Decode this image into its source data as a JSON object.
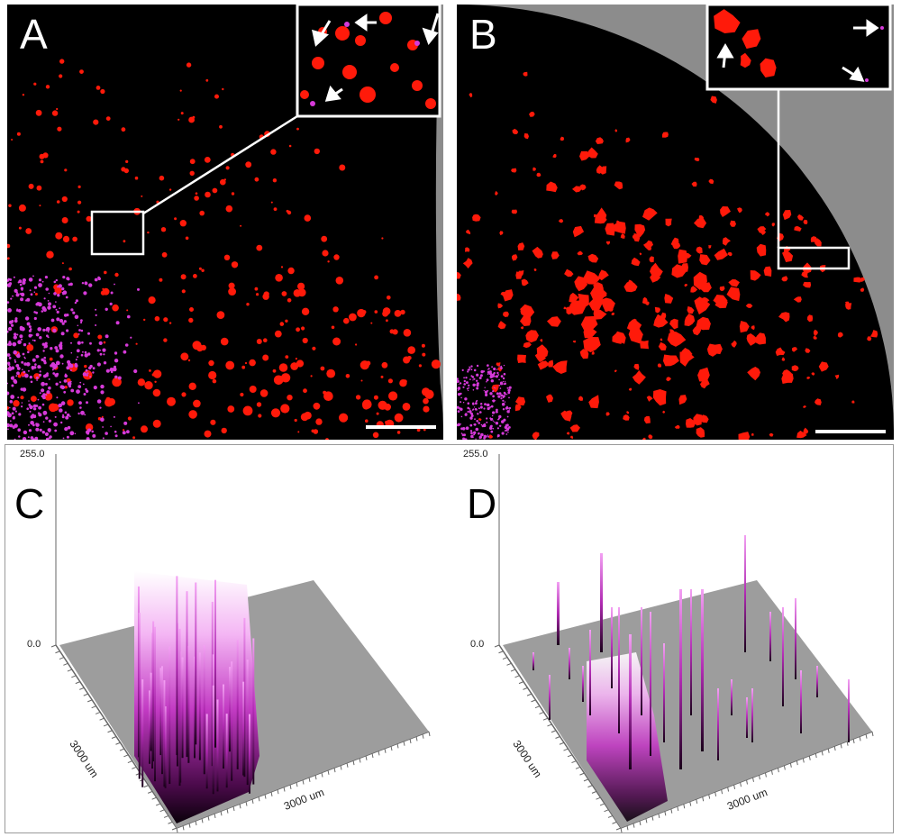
{
  "panels": {
    "a": {
      "label": "A"
    },
    "b": {
      "label": "B"
    },
    "c": {
      "label": "C",
      "z_max": "255.0",
      "z_min": "0.0",
      "x_axis": "3000 um",
      "y_axis": "3000 um"
    },
    "d": {
      "label": "D",
      "z_max": "255.0",
      "z_min": "0.0",
      "x_axis": "3000 um",
      "y_axis": "3000 um"
    }
  },
  "colors": {
    "background_black": "#000000",
    "outer_gray": "#8c8c8c",
    "cell_red": "#ff1a0a",
    "marker_magenta": "#d63ad9",
    "plot_plane": "#9d9d9d"
  },
  "icons": [
    "arrow-icon",
    "inset-box-icon",
    "scale-bar-icon"
  ]
}
